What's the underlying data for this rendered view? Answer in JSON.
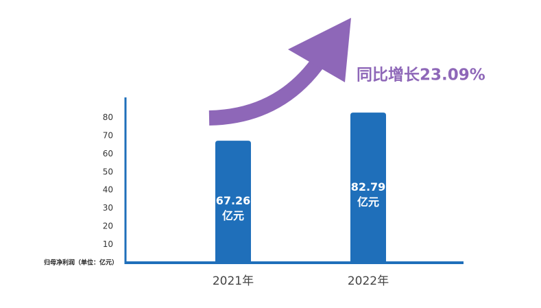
{
  "chart_data": {
    "type": "bar",
    "y_label": "归母净利润（单位：亿元）",
    "annotation": "同比增长23.09%",
    "categories": [
      "2021年",
      "2022年"
    ],
    "values": [
      67.26,
      82.79
    ],
    "value_labels": [
      "67.26\n亿元",
      "82.79\n亿元"
    ],
    "color": "#1f6fba",
    "ylim": [
      0,
      90
    ],
    "yticks": [
      10,
      20,
      30,
      40,
      50,
      60,
      70,
      80
    ],
    "grid": false
  }
}
